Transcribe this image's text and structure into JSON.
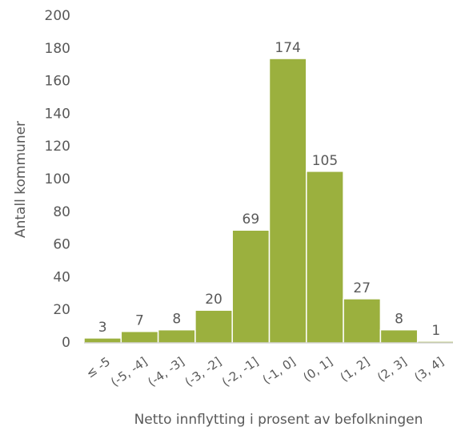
{
  "chart_data": {
    "type": "bar",
    "x_label": "Netto innflytting i prosent av befolkningen",
    "y_label": "Antall kommuner",
    "categories": [
      "≤ -5",
      "(-5, -4]",
      "(-4, -3]",
      "(-3, -2]",
      "(-2, -1]",
      "(-1, 0]",
      "(0, 1]",
      "(1, 2]",
      "(2, 3]",
      "(3, 4]"
    ],
    "values": [
      3,
      7,
      8,
      20,
      69,
      174,
      105,
      27,
      8,
      1
    ],
    "color": "#9bb03e",
    "ylim": [
      0,
      200
    ],
    "yticks": [
      0,
      20,
      40,
      60,
      80,
      100,
      120,
      140,
      160,
      180,
      200
    ],
    "grid": false
  }
}
